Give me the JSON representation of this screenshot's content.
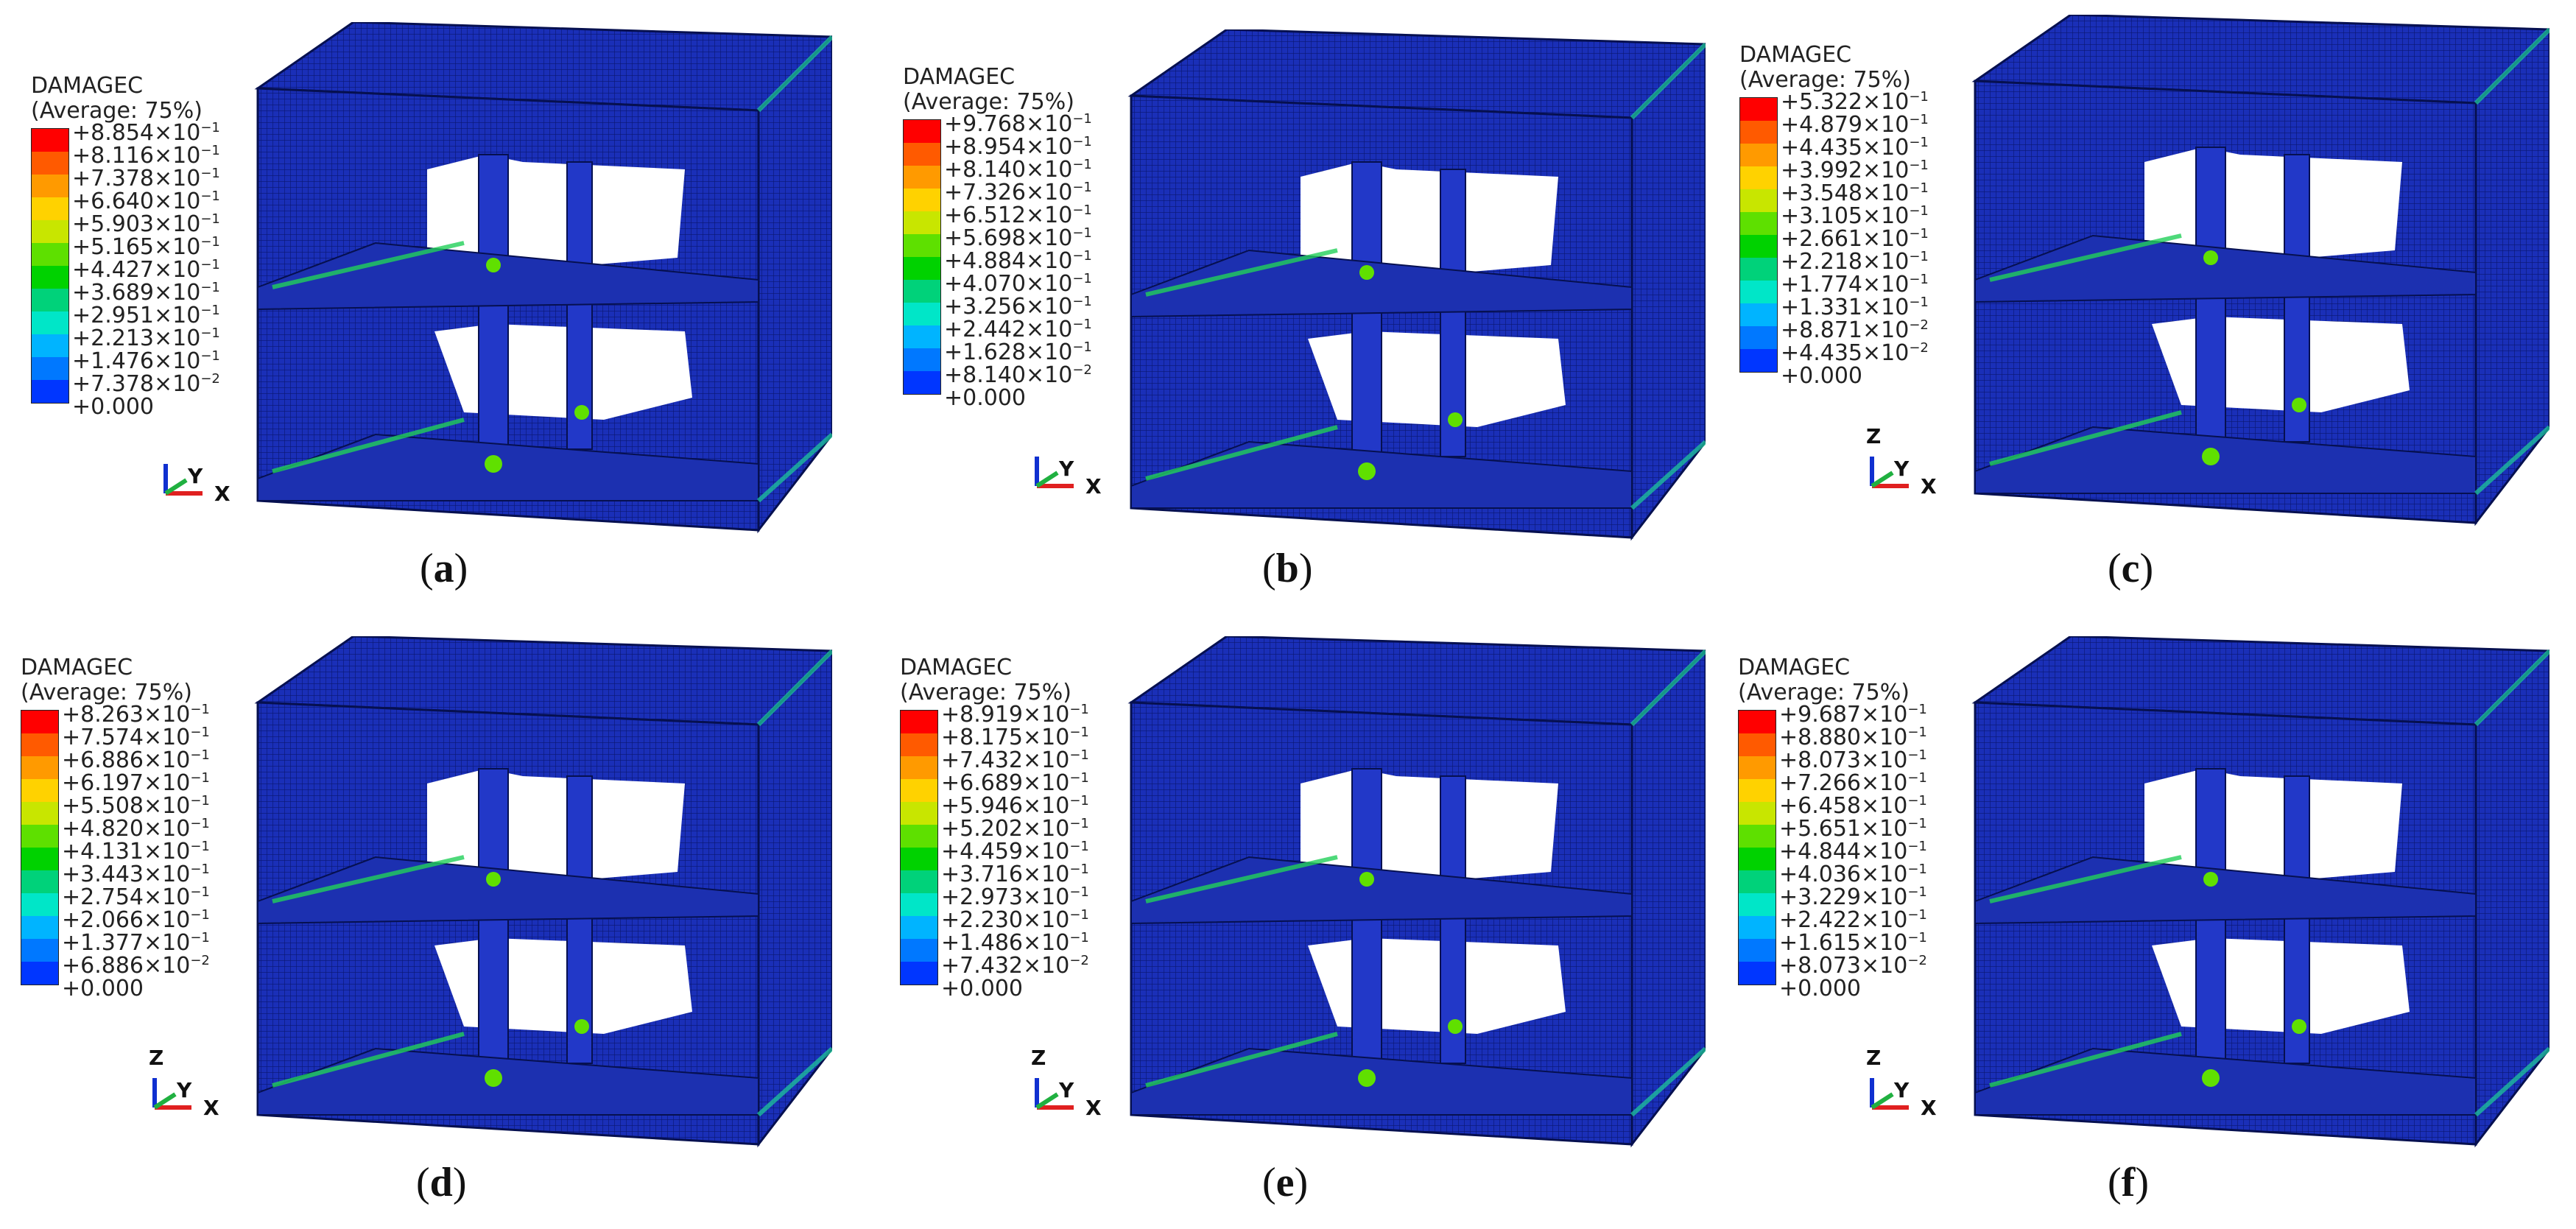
{
  "legend_title": "DAMAGEC",
  "legend_subtitle": "(Average: 75%)",
  "colors": [
    "#ff0000",
    "#ff5a00",
    "#ff9a00",
    "#ffd200",
    "#c8e600",
    "#5ee000",
    "#00d200",
    "#00d27a",
    "#00e6c8",
    "#00b4ff",
    "#0078ff",
    "#0036ff",
    "#0000d8"
  ],
  "axes": {
    "z": "Z",
    "y": "Y",
    "x": "X"
  },
  "panels": [
    {
      "caption": "a",
      "labels": [
        "+8.854×10",
        "+8.116×10",
        "+7.378×10",
        "+6.640×10",
        "+5.903×10",
        "+5.165×10",
        "+4.427×10",
        "+3.689×10",
        "+2.951×10",
        "+2.213×10",
        "+1.476×10",
        "+7.378×10",
        "+0.000"
      ],
      "exps": [
        "−1",
        "−1",
        "−1",
        "−1",
        "−1",
        "−1",
        "−1",
        "−1",
        "−1",
        "−1",
        "−1",
        "−2",
        ""
      ],
      "show_z": false
    },
    {
      "caption": "b",
      "labels": [
        "+9.768×10",
        "+8.954×10",
        "+8.140×10",
        "+7.326×10",
        "+6.512×10",
        "+5.698×10",
        "+4.884×10",
        "+4.070×10",
        "+3.256×10",
        "+2.442×10",
        "+1.628×10",
        "+8.140×10",
        "+0.000"
      ],
      "exps": [
        "−1",
        "−1",
        "−1",
        "−1",
        "−1",
        "−1",
        "−1",
        "−1",
        "−1",
        "−1",
        "−1",
        "−2",
        ""
      ],
      "show_z": false
    },
    {
      "caption": "c",
      "labels": [
        "+5.322×10",
        "+4.879×10",
        "+4.435×10",
        "+3.992×10",
        "+3.548×10",
        "+3.105×10",
        "+2.661×10",
        "+2.218×10",
        "+1.774×10",
        "+1.331×10",
        "+8.871×10",
        "+4.435×10",
        "+0.000"
      ],
      "exps": [
        "−1",
        "−1",
        "−1",
        "−1",
        "−1",
        "−1",
        "−1",
        "−1",
        "−1",
        "−1",
        "−2",
        "−2",
        ""
      ],
      "show_z": true
    },
    {
      "caption": "d",
      "labels": [
        "+8.263×10",
        "+7.574×10",
        "+6.886×10",
        "+6.197×10",
        "+5.508×10",
        "+4.820×10",
        "+4.131×10",
        "+3.443×10",
        "+2.754×10",
        "+2.066×10",
        "+1.377×10",
        "+6.886×10",
        "+0.000"
      ],
      "exps": [
        "−1",
        "−1",
        "−1",
        "−1",
        "−1",
        "−1",
        "−1",
        "−1",
        "−1",
        "−1",
        "−1",
        "−2",
        ""
      ],
      "show_z": true
    },
    {
      "caption": "e",
      "labels": [
        "+8.919×10",
        "+8.175×10",
        "+7.432×10",
        "+6.689×10",
        "+5.946×10",
        "+5.202×10",
        "+4.459×10",
        "+3.716×10",
        "+2.973×10",
        "+2.230×10",
        "+1.486×10",
        "+7.432×10",
        "+0.000"
      ],
      "exps": [
        "−1",
        "−1",
        "−1",
        "−1",
        "−1",
        "−1",
        "−1",
        "−1",
        "−1",
        "−1",
        "−1",
        "−2",
        ""
      ],
      "show_z": true
    },
    {
      "caption": "f",
      "labels": [
        "+9.687×10",
        "+8.880×10",
        "+8.073×10",
        "+7.266×10",
        "+6.458×10",
        "+5.651×10",
        "+4.844×10",
        "+4.036×10",
        "+3.229×10",
        "+2.422×10",
        "+1.615×10",
        "+8.073×10",
        "+0.000"
      ],
      "exps": [
        "−1",
        "−1",
        "−1",
        "−1",
        "−1",
        "−1",
        "−1",
        "−1",
        "−1",
        "−1",
        "−1",
        "−2",
        ""
      ],
      "show_z": true
    }
  ]
}
